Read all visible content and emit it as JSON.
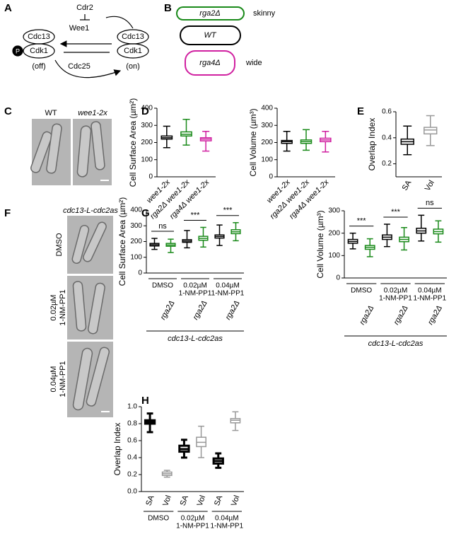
{
  "panels": {
    "letters": [
      "A",
      "B",
      "C",
      "D",
      "E",
      "F",
      "G",
      "H"
    ],
    "A": {
      "cdr2": "Cdr2",
      "wee1": "Wee1",
      "cdc25": "Cdc25",
      "left_top": "Cdc13",
      "left_bottom": "Cdk1",
      "left_state": "(off)",
      "right_top": "Cdc13",
      "right_bottom": "Cdk1",
      "right_state": "(on)",
      "phospho": "P"
    },
    "B": {
      "skinny_cell": "rga2Δ",
      "skinny": "skinny",
      "wt_cell": "WT",
      "wide_cell": "rga4Δ",
      "wide": "wide"
    },
    "C": {
      "wt": "WT",
      "mutant": "wee1-2x"
    },
    "F": {
      "strain": "cdc13-L-cdc2as",
      "conditions": [
        [
          "DMSO"
        ],
        [
          "0.02µM",
          "1-NM-PP1"
        ],
        [
          "0.04µM",
          "1-NM-PP1"
        ]
      ]
    }
  },
  "chart_data": [
    {
      "type": "box",
      "ylabel": "Cell Surface Area (µm²)",
      "categories": [
        "wee1-2x",
        "rga2Δ wee1-2x",
        "rga4Δ wee1-2x"
      ],
      "values": [
        [
          170,
          220,
          228,
          238,
          295
        ],
        [
          185,
          238,
          248,
          262,
          335
        ],
        [
          150,
          210,
          220,
          228,
          265
        ]
      ],
      "colors": [
        "#000000",
        "#1a8a1a",
        "#d020a0"
      ],
      "ylim": [
        0,
        400
      ],
      "yticks": [
        0,
        100,
        200,
        300,
        400
      ]
    },
    {
      "type": "box",
      "ylabel": "Cell Volume (µm³)",
      "categories": [
        "wee1-2x",
        "rga2Δ wee1-2x",
        "rga4Δ wee1-2x"
      ],
      "values": [
        [
          150,
          195,
          205,
          212,
          265
        ],
        [
          155,
          195,
          205,
          215,
          275
        ],
        [
          145,
          205,
          215,
          225,
          265
        ]
      ],
      "colors": [
        "#000000",
        "#1a8a1a",
        "#d020a0"
      ],
      "ylim": [
        0,
        400
      ],
      "yticks": [
        0,
        100,
        200,
        300,
        400
      ]
    },
    {
      "type": "box",
      "ylabel": "Overlap Index",
      "categories": [
        "SA",
        "Vol"
      ],
      "values": [
        [
          0.27,
          0.35,
          0.37,
          0.39,
          0.49
        ],
        [
          0.34,
          0.43,
          0.46,
          0.48,
          0.57
        ]
      ],
      "colors": [
        "#000000",
        "#999999"
      ],
      "ylim": [
        0.1,
        0.6
      ],
      "yticks": [
        0.2,
        0.4,
        0.6
      ]
    },
    {
      "type": "box",
      "ylabel": "Cell Surface Area (µm²)",
      "categories": [
        null,
        "rga2Δ",
        null,
        "rga2Δ",
        null,
        "rga2Δ"
      ],
      "values": [
        [
          150,
          172,
          180,
          188,
          220
        ],
        [
          130,
          170,
          178,
          188,
          215
        ],
        [
          160,
          195,
          203,
          212,
          270
        ],
        [
          165,
          208,
          220,
          233,
          290
        ],
        [
          175,
          222,
          232,
          242,
          305
        ],
        [
          205,
          250,
          262,
          275,
          320
        ]
      ],
      "colors": [
        "#000000",
        "#1a8a1a",
        "#000000",
        "#1a8a1a",
        "#000000",
        "#1a8a1a"
      ],
      "ylim": [
        0,
        400
      ],
      "yticks": [
        0,
        100,
        200,
        300,
        400
      ],
      "groups": [
        [
          "DMSO"
        ],
        [
          "0.02µM",
          "1-NM-PP1"
        ],
        [
          "0.04µM",
          "1-NM-PP1"
        ]
      ],
      "annotations": [
        "ns",
        "***",
        "***"
      ],
      "xlabel": "cdc13-L-cdc2as"
    },
    {
      "type": "box",
      "ylabel": "Cell Volume (µm³)",
      "categories": [
        null,
        "rga2Δ",
        null,
        "rga2Δ",
        null,
        "rga2Δ"
      ],
      "values": [
        [
          130,
          155,
          163,
          172,
          200
        ],
        [
          95,
          128,
          137,
          145,
          175
        ],
        [
          140,
          172,
          182,
          192,
          240
        ],
        [
          125,
          162,
          172,
          182,
          225
        ],
        [
          165,
          200,
          210,
          222,
          280
        ],
        [
          160,
          197,
          207,
          218,
          255
        ]
      ],
      "colors": [
        "#000000",
        "#1a8a1a",
        "#000000",
        "#1a8a1a",
        "#000000",
        "#1a8a1a"
      ],
      "ylim": [
        0,
        300
      ],
      "yticks": [
        0,
        100,
        200,
        300
      ],
      "groups": [
        [
          "DMSO"
        ],
        [
          "0.02µM",
          "1-NM-PP1"
        ],
        [
          "0.04µM",
          "1-NM-PP1"
        ]
      ],
      "annotations": [
        "***",
        "***",
        "ns"
      ],
      "xlabel": "cdc13-L-cdc2as"
    },
    {
      "type": "box",
      "ylabel": "Overlap Index",
      "categories": [
        "SA",
        "Vol",
        "SA",
        "Vol",
        "SA",
        "Vol"
      ],
      "values": [
        [
          0.7,
          0.8,
          0.82,
          0.84,
          0.92
        ],
        [
          0.17,
          0.19,
          0.21,
          0.23,
          0.25
        ],
        [
          0.4,
          0.47,
          0.5,
          0.54,
          0.61
        ],
        [
          0.4,
          0.53,
          0.58,
          0.64,
          0.77
        ],
        [
          0.28,
          0.33,
          0.36,
          0.39,
          0.45
        ],
        [
          0.72,
          0.81,
          0.84,
          0.86,
          0.94
        ]
      ],
      "colors": [
        "#000000",
        "#999999",
        "#000000",
        "#999999",
        "#000000",
        "#999999"
      ],
      "ylim": [
        0,
        1
      ],
      "yticks": [
        {
          "value": 0,
          "label": "0.0"
        },
        0.2,
        0.4,
        0.6,
        0.8,
        {
          "value": 1,
          "label": "1.0"
        }
      ],
      "groups": [
        [
          "DMSO"
        ],
        [
          "0.02µM",
          "1-NM-PP1"
        ],
        [
          "0.04µM",
          "1-NM-PP1"
        ]
      ]
    }
  ]
}
